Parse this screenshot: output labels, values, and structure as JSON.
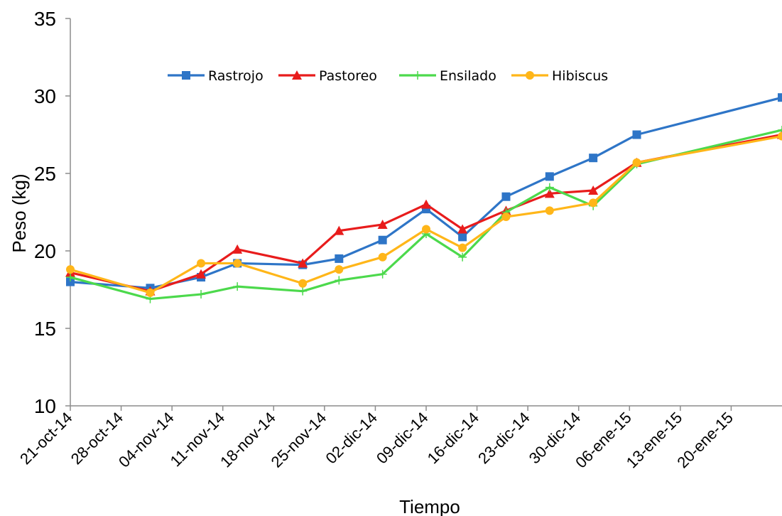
{
  "chart_data": {
    "type": "line",
    "title": "",
    "xlabel": "Tiempo",
    "ylabel": "Peso (kg)",
    "ylim": [
      10,
      35
    ],
    "yticks": [
      10,
      15,
      20,
      25,
      30,
      35
    ],
    "xlim": [
      "2014-10-21",
      "2015-01-27"
    ],
    "xticks": [
      "21-oct-14",
      "28-oct-14",
      "04-nov-14",
      "11-nov-14",
      "18-nov-14",
      "25-nov-14",
      "02-dic-14",
      "09-dic-14",
      "16-dic-14",
      "23-dic-14",
      "30-dic-14",
      "06-ene-15",
      "13-ene-15",
      "20-ene-15"
    ],
    "xtick_dates": [
      "2014-10-21",
      "2014-10-28",
      "2014-11-04",
      "2014-11-11",
      "2014-11-18",
      "2014-11-25",
      "2014-12-02",
      "2014-12-09",
      "2014-12-16",
      "2014-12-23",
      "2014-12-30",
      "2015-01-06",
      "2015-01-13",
      "2015-01-20"
    ],
    "grid": false,
    "legend_position": "top-center",
    "x": [
      "2014-10-21",
      "2014-11-01",
      "2014-11-08",
      "2014-11-13",
      "2014-11-22",
      "2014-11-27",
      "2014-12-03",
      "2014-12-09",
      "2014-12-14",
      "2014-12-20",
      "2014-12-26",
      "2015-01-01",
      "2015-01-07",
      "2015-01-13",
      "2015-01-27"
    ],
    "series": [
      {
        "name": "Rastrojo",
        "color": "#2e75c7",
        "marker": "square",
        "values": [
          18.0,
          17.6,
          18.3,
          19.2,
          19.1,
          19.5,
          20.7,
          22.7,
          20.9,
          23.5,
          24.8,
          26.0,
          27.5,
          null,
          29.9
        ]
      },
      {
        "name": "Pastoreo",
        "color": "#e81c1c",
        "marker": "triangle",
        "values": [
          18.6,
          17.4,
          18.5,
          20.1,
          19.2,
          21.3,
          21.7,
          23.0,
          21.4,
          22.6,
          23.7,
          23.9,
          25.7,
          null,
          27.5
        ]
      },
      {
        "name": "Ensilado",
        "color": "#4cd94c",
        "marker": "plus",
        "values": [
          18.3,
          16.9,
          17.2,
          17.7,
          17.4,
          18.1,
          18.5,
          21.1,
          19.6,
          22.5,
          24.1,
          22.9,
          25.6,
          null,
          27.8
        ]
      },
      {
        "name": "Hibiscus",
        "color": "#ffb619",
        "marker": "circle",
        "values": [
          18.8,
          17.3,
          19.2,
          19.2,
          17.9,
          18.8,
          19.6,
          21.4,
          20.2,
          22.2,
          22.6,
          23.1,
          25.7,
          null,
          27.4
        ]
      }
    ]
  }
}
